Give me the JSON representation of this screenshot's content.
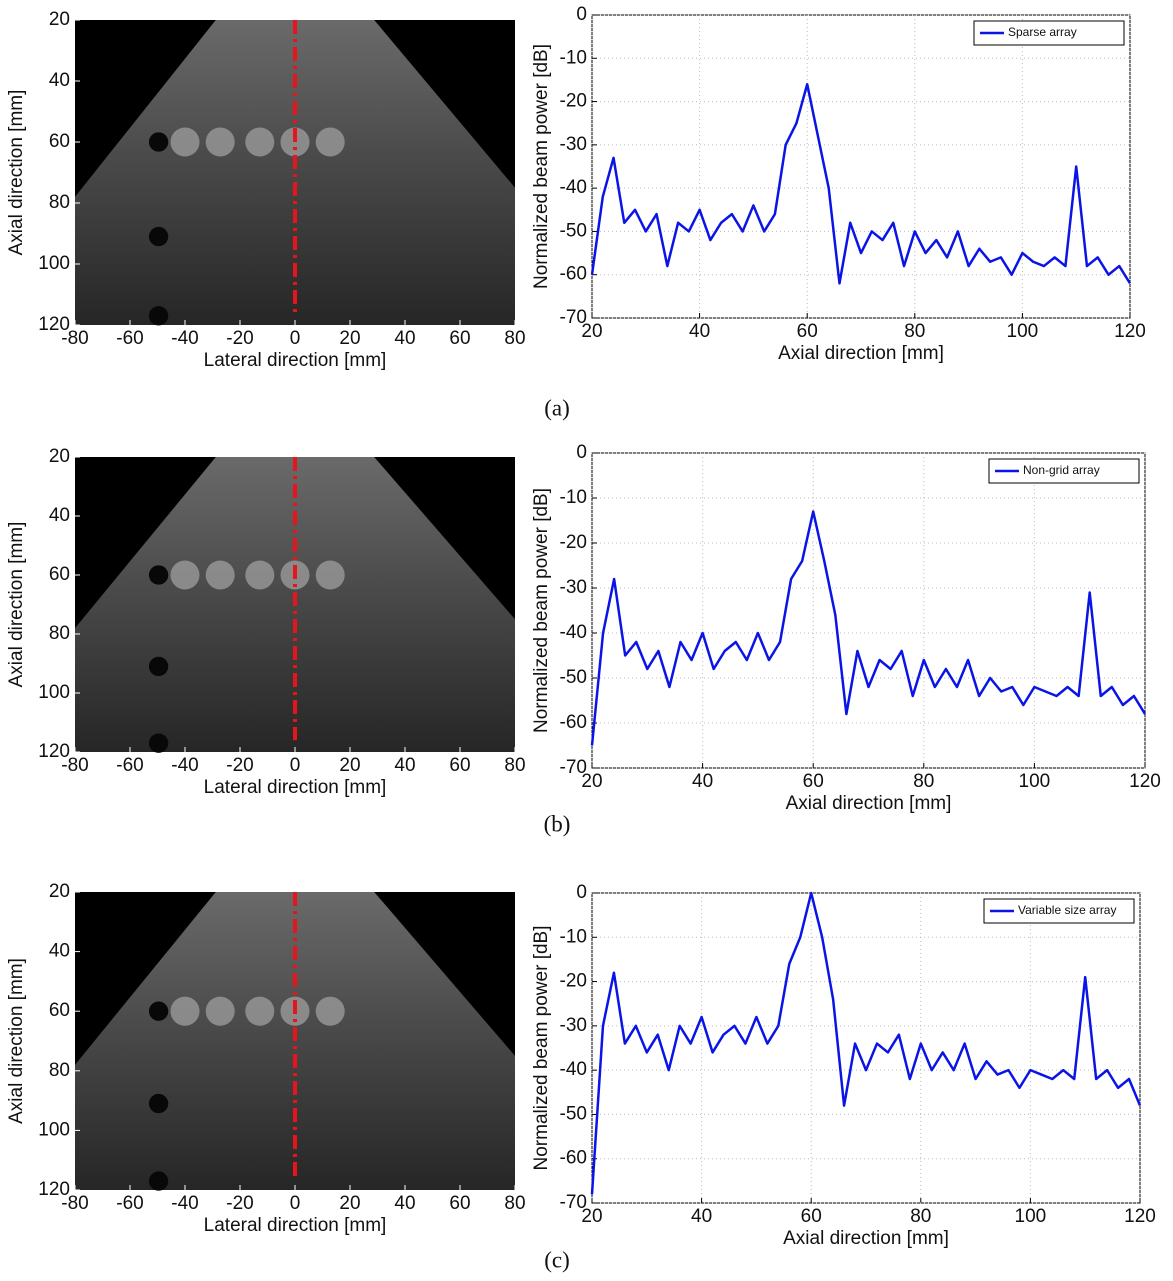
{
  "panel_labels": [
    "(a)",
    "(b)",
    "(c)"
  ],
  "chart_data": [
    {
      "type": "image",
      "xlabel": "Lateral direction [mm]",
      "ylabel": "Axial direction [mm]",
      "xlim": [
        -80,
        80
      ],
      "ylim": [
        20,
        120
      ],
      "y_inverted": true,
      "xticks": [
        -80,
        -60,
        -40,
        -20,
        0,
        20,
        40,
        60,
        80
      ],
      "yticks": [
        20,
        40,
        60,
        80,
        100,
        120
      ],
      "cut_line": {
        "x": 0,
        "y": [
          20,
          116
        ],
        "color": "#e8141c"
      }
    },
    {
      "type": "line",
      "xlabel": "Axial direction [mm]",
      "ylabel": "Normalized beam power [dB]",
      "xlim": [
        20,
        120
      ],
      "ylim": [
        -70,
        0
      ],
      "xticks": [
        20,
        40,
        60,
        80,
        100,
        120
      ],
      "yticks": [
        -70,
        -60,
        -50,
        -40,
        -30,
        -20,
        -10,
        0
      ],
      "grid": true,
      "legend": "upper right",
      "x": [
        20,
        22,
        24,
        26,
        28,
        30,
        32,
        34,
        36,
        38,
        40,
        42,
        44,
        46,
        48,
        50,
        52,
        54,
        56,
        58,
        60,
        62,
        64,
        66,
        68,
        70,
        72,
        74,
        76,
        78,
        80,
        82,
        84,
        86,
        88,
        90,
        92,
        94,
        96,
        98,
        100,
        102,
        104,
        106,
        108,
        110,
        112,
        114,
        116,
        118,
        120
      ],
      "series": [
        {
          "name": "Sparse array",
          "color": "#0a14e6",
          "values": [
            -60,
            -42,
            -33,
            -48,
            -45,
            -50,
            -46,
            -58,
            -48,
            -50,
            -45,
            -52,
            -48,
            -46,
            -50,
            -44,
            -50,
            -46,
            -30,
            -25,
            -16,
            -28,
            -40,
            -62,
            -48,
            -55,
            -50,
            -52,
            -48,
            -58,
            -50,
            -55,
            -52,
            -56,
            -50,
            -58,
            -54,
            -57,
            -56,
            -60,
            -55,
            -57,
            -58,
            -56,
            -58,
            -35,
            -58,
            -56,
            -60,
            -58,
            -62
          ]
        }
      ]
    },
    {
      "type": "image",
      "xlabel": "Lateral direction [mm]",
      "ylabel": "Axial direction [mm]",
      "xlim": [
        -80,
        80
      ],
      "ylim": [
        20,
        120
      ],
      "y_inverted": true,
      "xticks": [
        -80,
        -60,
        -40,
        -20,
        0,
        20,
        40,
        60,
        80
      ],
      "yticks": [
        20,
        40,
        60,
        80,
        100,
        120
      ],
      "cut_line": {
        "x": 0,
        "y": [
          20,
          116
        ],
        "color": "#e8141c"
      }
    },
    {
      "type": "line",
      "xlabel": "Axial direction [mm]",
      "ylabel": "Normalized beam power [dB]",
      "xlim": [
        20,
        120
      ],
      "ylim": [
        -70,
        0
      ],
      "xticks": [
        20,
        40,
        60,
        80,
        100,
        120
      ],
      "yticks": [
        -70,
        -60,
        -50,
        -40,
        -30,
        -20,
        -10,
        0
      ],
      "grid": true,
      "legend": "upper right",
      "x": [
        20,
        22,
        24,
        26,
        28,
        30,
        32,
        34,
        36,
        38,
        40,
        42,
        44,
        46,
        48,
        50,
        52,
        54,
        56,
        58,
        60,
        62,
        64,
        66,
        68,
        70,
        72,
        74,
        76,
        78,
        80,
        82,
        84,
        86,
        88,
        90,
        92,
        94,
        96,
        98,
        100,
        102,
        104,
        106,
        108,
        110,
        112,
        114,
        116,
        118,
        120
      ],
      "series": [
        {
          "name": "Non-grid array",
          "color": "#0a14e6",
          "values": [
            -65,
            -40,
            -28,
            -45,
            -42,
            -48,
            -44,
            -52,
            -42,
            -46,
            -40,
            -48,
            -44,
            -42,
            -46,
            -40,
            -46,
            -42,
            -28,
            -24,
            -13,
            -24,
            -36,
            -58,
            -44,
            -52,
            -46,
            -48,
            -44,
            -54,
            -46,
            -52,
            -48,
            -52,
            -46,
            -54,
            -50,
            -53,
            -52,
            -56,
            -52,
            -53,
            -54,
            -52,
            -54,
            -31,
            -54,
            -52,
            -56,
            -54,
            -58
          ]
        }
      ]
    },
    {
      "type": "image",
      "xlabel": "Lateral direction [mm]",
      "ylabel": "Axial direction [mm]",
      "xlim": [
        -80,
        80
      ],
      "ylim": [
        20,
        120
      ],
      "y_inverted": true,
      "xticks": [
        -80,
        -60,
        -40,
        -20,
        0,
        20,
        40,
        60,
        80
      ],
      "yticks": [
        20,
        40,
        60,
        80,
        100,
        120
      ],
      "cut_line": {
        "x": 0,
        "y": [
          20,
          116
        ],
        "color": "#e8141c"
      }
    },
    {
      "type": "line",
      "xlabel": "Axial direction [mm]",
      "ylabel": "Normalized beam power [dB]",
      "xlim": [
        20,
        120
      ],
      "ylim": [
        -70,
        0
      ],
      "xticks": [
        20,
        40,
        60,
        80,
        100,
        120
      ],
      "yticks": [
        -70,
        -60,
        -50,
        -40,
        -30,
        -20,
        -10,
        0
      ],
      "grid": true,
      "legend": "upper right",
      "x": [
        20,
        22,
        24,
        26,
        28,
        30,
        32,
        34,
        36,
        38,
        40,
        42,
        44,
        46,
        48,
        50,
        52,
        54,
        56,
        58,
        60,
        62,
        64,
        66,
        68,
        70,
        72,
        74,
        76,
        78,
        80,
        82,
        84,
        86,
        88,
        90,
        92,
        94,
        96,
        98,
        100,
        102,
        104,
        106,
        108,
        110,
        112,
        114,
        116,
        118,
        120
      ],
      "series": [
        {
          "name": "Variable size array",
          "color": "#0a14e6",
          "values": [
            -68,
            -30,
            -18,
            -34,
            -30,
            -36,
            -32,
            -40,
            -30,
            -34,
            -28,
            -36,
            -32,
            -30,
            -34,
            -28,
            -34,
            -30,
            -16,
            -10,
            0,
            -10,
            -24,
            -48,
            -34,
            -40,
            -34,
            -36,
            -32,
            -42,
            -34,
            -40,
            -36,
            -40,
            -34,
            -42,
            -38,
            -41,
            -40,
            -44,
            -40,
            -41,
            -42,
            -40,
            -42,
            -19,
            -42,
            -40,
            -44,
            -42,
            -48
          ]
        }
      ]
    }
  ]
}
